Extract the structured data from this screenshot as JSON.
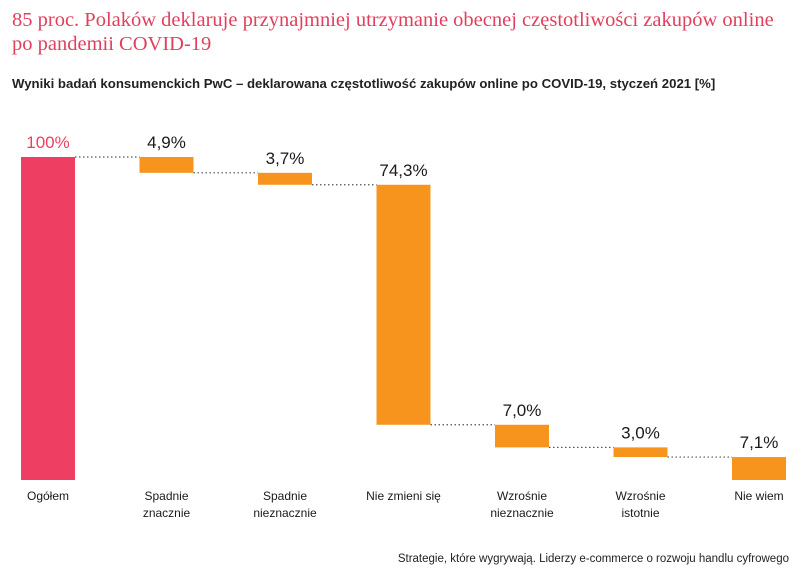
{
  "title": "85 proc. Polaków deklaruje przynajmniej utrzymanie obecnej częstotliwości zakupów online po pandemii COVID-19",
  "subtitle": "Wyniki badań konsumenckich PwC – deklarowana częstotliwość zakupów online po COVID-19, styczeń 2021 [%]",
  "source": "Strategie, które wygrywają. Liderzy e-commerce o rozwoju handlu cyfrowego",
  "colors": {
    "total": "#ee3f63",
    "step": "#f7941d",
    "title": "#e0405e",
    "text": "#1a1a1a",
    "connector": "#555555"
  },
  "chart_data": {
    "type": "waterfall",
    "ylim": [
      0,
      100
    ],
    "grid": false,
    "categories": [
      [
        "Ogółem"
      ],
      [
        "Spadnie",
        "znacznie"
      ],
      [
        "Spadnie",
        "nieznacznie"
      ],
      [
        "Nie zmieni się"
      ],
      [
        "Wzrośnie",
        "nieznacznie"
      ],
      [
        "Wzrośnie",
        "istotnie"
      ],
      [
        "Nie wiem"
      ]
    ],
    "values": [
      100,
      4.9,
      3.7,
      74.3,
      7.0,
      3.0,
      7.1
    ],
    "labels": [
      "100%",
      "4,9%",
      "3,7%",
      "74,3%",
      "7,0%",
      "3,0%",
      "7,1%"
    ]
  }
}
